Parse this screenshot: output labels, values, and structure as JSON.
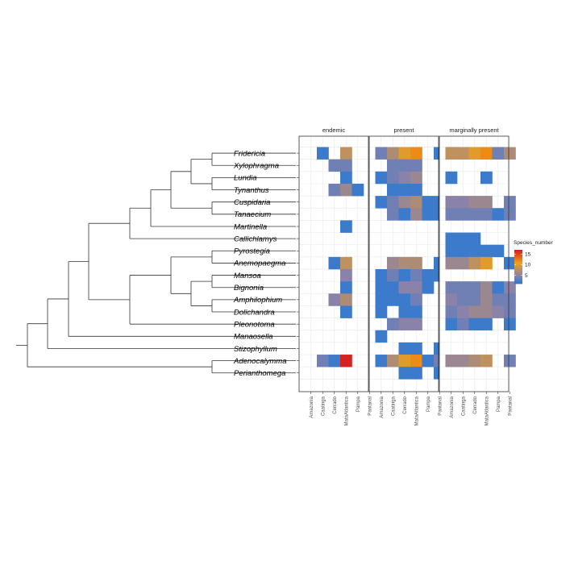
{
  "chart_data": {
    "type": "heatmap",
    "title": "",
    "facets": [
      "endemic",
      "present",
      "marginally present"
    ],
    "x": [
      "Amazonia",
      "Caatinga",
      "Cerrado",
      "MataAtlantica",
      "Pampa",
      "Pantanal"
    ],
    "y": [
      "Fridericia",
      "Xylophragma",
      "Lundia",
      "Tynanthus",
      "Cuspidaria",
      "Tanaecium",
      "Martinella",
      "Callichlamys",
      "Pyrostegia",
      "Anemopaegma",
      "Mansoa",
      "Bignonia",
      "Amphilophium",
      "Dolichandra",
      "Pleonotoma",
      "Manaosella",
      "Stizophyllum",
      "Adenocalymma",
      "Perianthomega"
    ],
    "values": {
      "endemic": [
        [
          null,
          2,
          null,
          8,
          null,
          null
        ],
        [
          null,
          null,
          4,
          4,
          null,
          null
        ],
        [
          null,
          null,
          null,
          2,
          null,
          null
        ],
        [
          null,
          null,
          4,
          6,
          2,
          null
        ],
        [
          null,
          null,
          null,
          null,
          null,
          null
        ],
        [
          null,
          null,
          null,
          null,
          null,
          null
        ],
        [
          null,
          null,
          null,
          2,
          null,
          null
        ],
        [
          null,
          null,
          null,
          null,
          null,
          null
        ],
        [
          null,
          null,
          null,
          null,
          null,
          null
        ],
        [
          null,
          null,
          2,
          8,
          null,
          null
        ],
        [
          null,
          null,
          null,
          5,
          null,
          null
        ],
        [
          null,
          null,
          null,
          2,
          null,
          null
        ],
        [
          null,
          null,
          5,
          7,
          null,
          null
        ],
        [
          null,
          null,
          null,
          2,
          null,
          null
        ],
        [
          null,
          null,
          null,
          null,
          null,
          null
        ],
        [
          null,
          null,
          null,
          null,
          null,
          null
        ],
        [
          null,
          null,
          null,
          null,
          null,
          null
        ],
        [
          null,
          4,
          2,
          17,
          null,
          null
        ],
        [
          null,
          null,
          null,
          null,
          null,
          null
        ]
      ],
      "present": [
        [
          4,
          7,
          10,
          12,
          null,
          2
        ],
        [
          null,
          4,
          4,
          4,
          null,
          null
        ],
        [
          2,
          4,
          5,
          6,
          null,
          null
        ],
        [
          null,
          2,
          2,
          2,
          null,
          null
        ],
        [
          2,
          4,
          6,
          7,
          2,
          2
        ],
        [
          null,
          4,
          2,
          6,
          2,
          2
        ],
        [
          null,
          null,
          null,
          null,
          null,
          null
        ],
        [
          null,
          null,
          null,
          null,
          null,
          null
        ],
        [
          null,
          null,
          null,
          null,
          null,
          null
        ],
        [
          null,
          6,
          7,
          7,
          null,
          2
        ],
        [
          2,
          4,
          2,
          4,
          2,
          2
        ],
        [
          2,
          2,
          5,
          5,
          2,
          null
        ],
        [
          2,
          2,
          2,
          4,
          null,
          null
        ],
        [
          2,
          null,
          2,
          2,
          null,
          null
        ],
        [
          null,
          4,
          5,
          5,
          null,
          null
        ],
        [
          2,
          null,
          null,
          null,
          null,
          null
        ],
        [
          null,
          null,
          2,
          2,
          null,
          2
        ],
        [
          2,
          7,
          10,
          12,
          2,
          4
        ],
        [
          null,
          null,
          2,
          2,
          null,
          2
        ]
      ],
      "marginally present": [
        [
          8,
          8,
          10,
          12,
          4,
          7
        ],
        [
          null,
          null,
          null,
          null,
          null,
          null
        ],
        [
          2,
          null,
          null,
          2,
          null,
          null
        ],
        [
          null,
          null,
          null,
          null,
          null,
          null
        ],
        [
          5,
          5,
          6,
          6,
          null,
          4
        ],
        [
          4,
          4,
          4,
          4,
          2,
          4
        ],
        [
          null,
          null,
          null,
          null,
          null,
          null
        ],
        [
          2,
          2,
          2,
          null,
          null,
          null
        ],
        [
          2,
          2,
          2,
          2,
          2,
          null
        ],
        [
          6,
          6,
          8,
          10,
          null,
          2
        ],
        [
          null,
          null,
          null,
          null,
          null,
          null
        ],
        [
          4,
          4,
          4,
          6,
          2,
          5
        ],
        [
          5,
          4,
          4,
          6,
          4,
          4
        ],
        [
          4,
          5,
          6,
          6,
          5,
          4
        ],
        [
          2,
          4,
          2,
          2,
          null,
          2
        ],
        [
          null,
          null,
          null,
          null,
          null,
          null
        ],
        [
          null,
          null,
          null,
          null,
          null,
          null
        ],
        [
          6,
          6,
          7,
          8,
          null,
          4
        ],
        [
          null,
          null,
          null,
          null,
          null,
          null
        ]
      ]
    },
    "legend": {
      "title": "Species_number",
      "ticks": [
        5,
        10,
        15
      ],
      "range": [
        1,
        17
      ],
      "placement": "right"
    },
    "colors": {
      "low": "#2277d8",
      "mid": "#8a82a8",
      "high_mid": "#f2a013",
      "high": "#d42121",
      "grid": "#ebebeb",
      "panel_border": "#333333",
      "tree": "#333333"
    }
  }
}
